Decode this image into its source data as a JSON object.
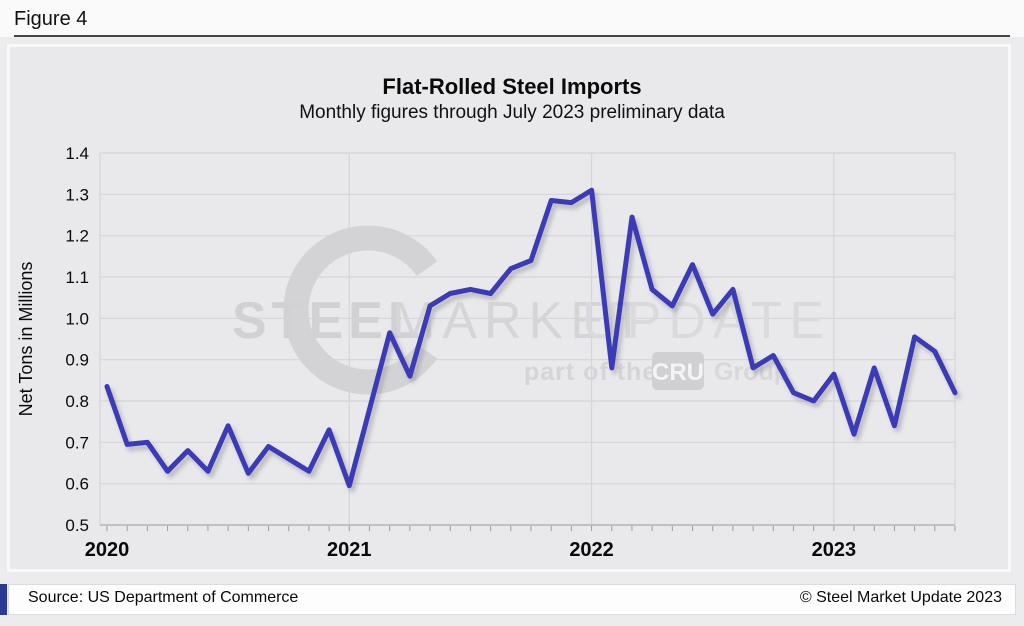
{
  "header": {
    "figure_label": "Figure 4"
  },
  "chart_data": {
    "type": "line",
    "title": "Flat-Rolled Steel Imports",
    "subtitle": "Monthly figures through July 2023 preliminary data",
    "ylabel": "Net Tons in Millions",
    "ylim": [
      0.5,
      1.4
    ],
    "ytick_step": 0.1,
    "grid": true,
    "legend": "none",
    "x_unit": "month",
    "x_range": [
      "Jan 2020",
      "Jul 2023"
    ],
    "x_year_labels": [
      "2020",
      "2021",
      "2022",
      "2023"
    ],
    "months_per_year_tick": 12,
    "series": [
      {
        "name": "Flat-rolled steel imports (million net tons)",
        "color": "#3b3bb8",
        "values": [
          0.835,
          0.695,
          0.7,
          0.63,
          0.68,
          0.63,
          0.74,
          0.625,
          0.69,
          0.66,
          0.63,
          0.73,
          0.595,
          0.78,
          0.965,
          0.86,
          1.03,
          1.06,
          1.07,
          1.06,
          1.12,
          1.14,
          1.285,
          1.28,
          1.31,
          0.88,
          1.245,
          1.07,
          1.03,
          1.13,
          1.01,
          1.07,
          0.88,
          0.91,
          0.82,
          0.8,
          0.865,
          0.72,
          0.88,
          0.74,
          0.955,
          0.92,
          0.82
        ]
      }
    ]
  },
  "watermark": {
    "steel": "STEEL",
    "market": "MARKET",
    "update": "UPDATE",
    "part_of": "part of the",
    "cru": "CRU",
    "group": "Group"
  },
  "footer": {
    "source": "Source: US Department of Commerce",
    "copyright": "© Steel Market Update 2023"
  },
  "colors": {
    "line": "#3b3bb8",
    "grid": "#d5d5d8",
    "axis": "#b3b3b6",
    "tick": "#9b9b9e",
    "watermark": "#d3d3d6",
    "watermark_light": "#d8d8db",
    "panel_bg": "#e9e9ec",
    "page_bg": "#ececee",
    "accent_bar": "#2c3a94"
  }
}
